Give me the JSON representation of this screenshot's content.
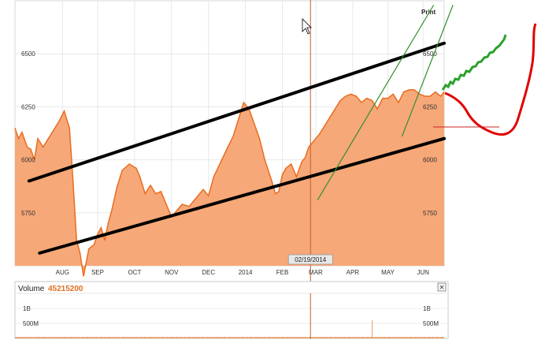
{
  "toolbar": {
    "print_label": "Print"
  },
  "chart_data": [
    {
      "type": "area",
      "title": "",
      "xlabel": "",
      "ylabel": "",
      "ylim": [
        5500,
        6750
      ],
      "y_ticks": [
        5750,
        6000,
        6250,
        6500
      ],
      "month_labels": [
        "AUG",
        "SEP",
        "OCT",
        "NOV",
        "DEC",
        "2014",
        "FEB",
        "MAR",
        "APR",
        "MAY",
        "JUN"
      ],
      "month_positions": [
        0.8,
        1.8,
        2.85,
        3.9,
        4.95,
        6.0,
        7.05,
        8.0,
        9.05,
        10.05,
        11.05
      ],
      "x_range": [
        -0.55,
        11.65
      ],
      "crosshair": {
        "x": 7.85,
        "label": "02/19/2014"
      },
      "series": [
        {
          "values_x": [
            -0.55,
            -0.45,
            -0.35,
            -0.2,
            -0.1,
            0.0,
            0.1,
            0.25,
            0.4,
            0.55,
            0.7,
            0.85,
            1.0,
            1.1,
            1.2,
            1.3,
            1.4,
            1.55,
            1.7,
            1.8,
            1.9,
            2.0,
            2.1,
            2.2,
            2.35,
            2.5,
            2.7,
            2.9,
            3.0,
            3.15,
            3.3,
            3.45,
            3.6,
            3.75,
            3.9,
            4.05,
            4.2,
            4.4,
            4.6,
            4.8,
            4.95,
            5.1,
            5.3,
            5.5,
            5.65,
            5.8,
            5.95,
            6.1,
            6.25,
            6.4,
            6.55,
            6.65,
            6.75,
            6.85,
            6.95,
            7.05,
            7.15,
            7.3,
            7.45,
            7.6,
            7.7,
            7.8,
            7.9,
            8.0,
            8.1,
            8.25,
            8.4,
            8.55,
            8.7,
            8.85,
            9.0,
            9.15,
            9.3,
            9.45,
            9.6,
            9.75,
            9.9,
            10.05,
            10.2,
            10.35,
            10.5,
            10.65,
            10.8,
            10.95,
            11.1,
            11.25,
            11.4,
            11.55,
            11.65
          ],
          "values_y": [
            6150,
            6100,
            6130,
            6060,
            6050,
            6000,
            6100,
            6060,
            6100,
            6140,
            6180,
            6230,
            6150,
            5900,
            5620,
            5560,
            5450,
            5580,
            5600,
            5650,
            5680,
            5620,
            5700,
            5760,
            5870,
            5950,
            5980,
            5960,
            5920,
            5840,
            5880,
            5840,
            5850,
            5790,
            5730,
            5760,
            5790,
            5780,
            5820,
            5860,
            5830,
            5920,
            5990,
            6060,
            6110,
            6190,
            6270,
            6240,
            6170,
            6100,
            6000,
            5950,
            5900,
            5840,
            5850,
            5930,
            5960,
            5980,
            5920,
            5990,
            6010,
            6060,
            6080,
            6100,
            6120,
            6160,
            6200,
            6240,
            6280,
            6300,
            6310,
            6300,
            6270,
            6290,
            6280,
            6240,
            6290,
            6290,
            6310,
            6270,
            6320,
            6330,
            6330,
            6310,
            6300,
            6300,
            6320,
            6300,
            6320
          ]
        }
      ]
    },
    {
      "type": "bar",
      "title": "Volume",
      "highlight_value": "45215200",
      "y_ticks_labels": [
        "1B",
        "500M"
      ],
      "ylim": [
        0,
        1500000000
      ],
      "values": [
        42,
        38,
        45,
        40,
        48,
        44,
        41,
        39,
        43,
        47,
        45,
        40,
        38,
        42,
        44,
        46,
        41,
        39,
        43,
        45,
        47,
        42,
        40,
        38,
        44,
        46,
        43,
        41,
        39,
        42,
        45,
        47,
        44,
        40,
        38,
        41,
        43,
        46,
        48,
        42,
        39,
        40,
        44,
        45,
        43,
        41,
        39,
        42,
        46,
        44,
        40,
        38,
        41,
        43,
        45,
        47,
        42,
        39,
        40,
        44,
        46,
        43,
        41,
        39,
        42,
        45,
        47,
        44,
        40,
        38,
        41,
        43,
        46,
        48,
        42,
        39,
        40,
        44,
        45,
        43,
        41,
        39,
        42,
        46,
        44,
        40,
        38,
        41,
        43,
        45,
        47,
        42,
        39,
        40,
        44,
        46,
        43,
        41,
        39,
        42,
        45,
        47,
        44,
        40,
        38,
        41,
        43,
        46,
        48,
        42,
        39,
        40,
        44,
        45,
        43,
        41,
        39,
        42,
        46,
        44,
        40,
        38,
        41,
        43,
        45,
        47,
        42,
        39,
        40,
        44,
        46,
        43,
        41,
        39,
        42,
        45,
        47,
        44,
        40,
        38,
        41,
        43,
        46,
        48,
        42,
        39,
        40,
        44,
        45,
        43,
        41,
        39,
        42,
        46,
        44,
        40,
        38,
        41,
        43,
        45,
        47,
        42,
        39,
        40,
        44,
        46,
        43,
        41,
        39,
        42,
        45,
        47,
        44,
        40,
        38,
        41,
        43,
        46,
        48,
        42,
        39,
        40,
        44,
        45,
        43,
        41,
        39,
        42,
        46,
        44,
        40,
        38,
        41,
        43,
        45,
        47,
        42,
        39,
        40,
        44,
        46,
        43,
        41,
        39,
        42,
        45,
        47,
        44,
        40,
        38,
        41,
        43,
        46,
        48,
        42,
        39,
        40,
        44,
        45,
        43,
        41,
        39,
        42,
        46,
        44,
        40,
        38,
        41,
        43,
        45,
        47,
        42,
        39,
        40,
        44,
        46,
        43,
        41,
        39,
        42,
        45,
        47,
        44,
        40,
        38,
        41,
        43,
        46,
        48,
        42,
        39,
        40,
        44,
        45,
        43,
        41,
        39,
        42,
        46,
        44,
        40,
        38,
        41,
        43,
        45,
        47,
        42,
        39,
        40,
        44,
        46,
        43,
        41,
        39,
        42,
        45,
        47,
        44,
        40,
        38,
        41,
        43,
        46,
        48,
        42,
        39,
        40,
        44,
        45,
        43,
        41,
        39,
        42,
        46,
        44,
        40,
        38,
        41,
        43,
        45,
        47,
        42,
        39,
        40,
        44,
        46,
        43,
        41,
        39,
        42,
        45,
        47,
        44,
        40,
        38,
        41,
        43,
        46,
        48,
        42,
        39,
        40,
        44,
        45,
        43,
        41,
        39,
        42,
        46,
        44,
        40,
        38,
        41,
        43,
        45,
        47,
        42,
        39,
        40,
        44,
        46,
        43,
        41,
        39,
        42,
        45,
        47,
        44,
        40,
        38,
        41,
        43,
        46,
        48,
        42,
        39,
        40,
        44,
        45,
        43,
        41,
        39,
        42,
        46,
        44,
        40,
        38,
        41,
        43,
        45,
        47,
        42,
        39,
        40,
        44,
        46,
        43,
        41,
        39,
        42,
        45,
        47,
        44,
        40,
        38,
        41,
        43,
        46,
        48,
        42,
        39,
        40,
        44,
        45,
        43,
        41,
        39,
        42,
        46,
        44,
        40,
        38,
        41,
        43,
        45,
        47,
        42,
        39,
        40,
        44,
        46,
        43,
        41,
        39,
        42,
        45,
        47,
        44,
        40,
        38,
        41,
        43,
        46,
        48,
        42,
        39,
        40,
        44,
        45,
        43,
        41,
        39,
        42,
        46,
        44,
        40,
        38,
        41,
        43,
        45,
        47,
        42,
        39,
        40,
        44,
        46,
        43,
        41,
        39,
        42,
        45,
        47,
        44,
        40,
        38,
        41,
        43,
        46,
        48,
        42,
        39,
        40,
        44,
        45,
        43,
        41,
        39,
        42,
        46,
        44,
        40,
        38,
        41,
        43,
        45,
        47,
        42,
        39,
        40,
        44,
        46,
        43,
        41,
        39,
        42,
        45,
        47,
        44,
        40,
        38,
        41,
        43,
        46,
        48,
        42,
        39,
        40,
        44,
        45,
        43,
        41,
        39,
        42,
        46,
        44,
        40,
        38,
        41,
        43,
        45,
        47,
        42,
        39,
        40,
        44,
        46,
        43,
        41,
        39,
        42,
        45,
        47,
        44,
        40,
        38,
        41,
        43,
        46,
        48,
        42,
        39,
        40,
        44,
        45,
        43,
        41,
        39,
        42,
        46,
        44,
        40,
        38,
        41,
        43,
        45,
        47,
        42,
        39,
        40,
        44,
        46,
        43,
        41,
        39,
        42,
        45,
        47,
        44,
        40,
        38,
        41,
        43,
        46,
        48,
        42
      ],
      "spike": {
        "index": 470,
        "value": 600
      }
    }
  ],
  "annotations": {
    "trend_lines": [
      {
        "color": "#000000",
        "from": [
          -0.15,
          5900
        ],
        "to": [
          11.65,
          6550
        ]
      },
      {
        "color": "#000000",
        "from": [
          0.15,
          5560
        ],
        "to": [
          11.65,
          6100
        ]
      }
    ],
    "green_lines": [
      {
        "from": [
          8.05,
          5810
        ],
        "to": [
          11.35,
          6730
        ]
      },
      {
        "from": [
          10.45,
          6110
        ],
        "to": [
          11.9,
          6730
        ]
      }
    ]
  },
  "colors": {
    "area_fill": "#f7a878",
    "area_line": "#e86c1e",
    "grid": "#e8e8e8",
    "crosshair": "#c0602a",
    "trend_black": "#000000",
    "trend_green": "#2f8f2f",
    "squiggle_green": "#2aa22a",
    "red_curve": "#e00000",
    "volume_bar": "#e07020"
  }
}
